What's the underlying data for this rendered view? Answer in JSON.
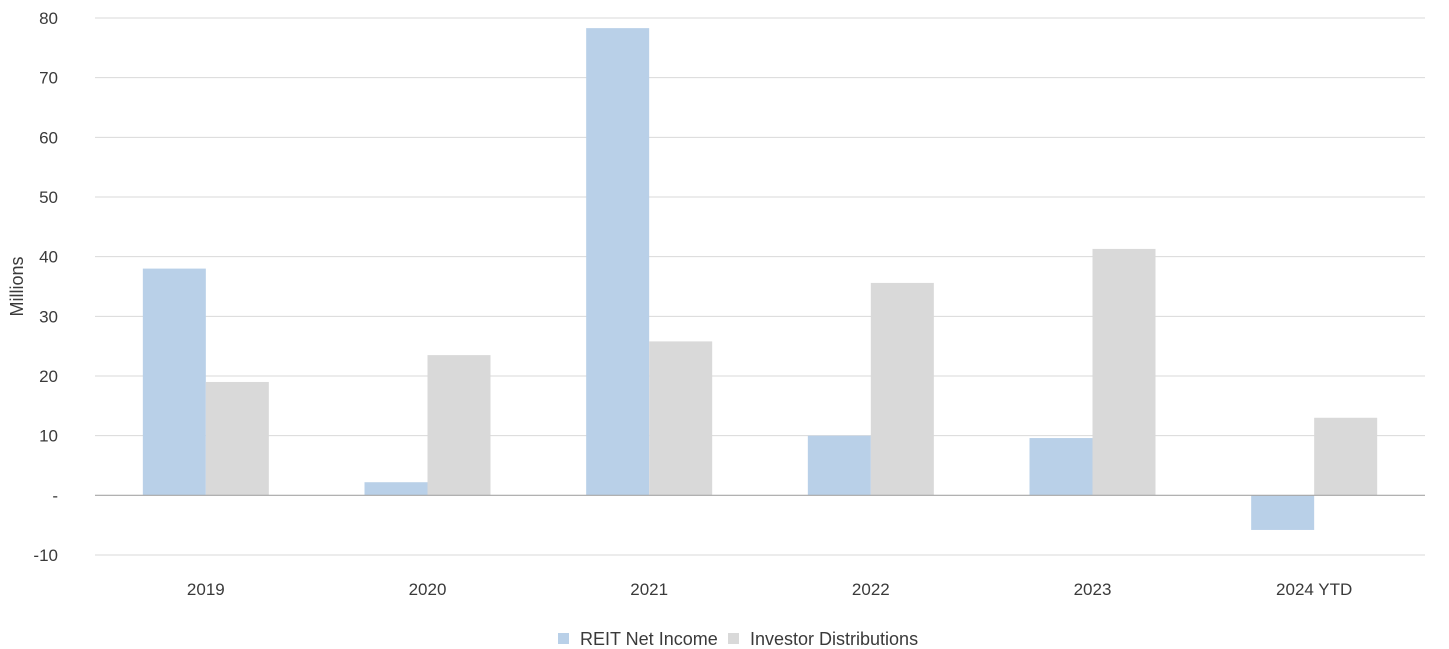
{
  "chart_data": {
    "type": "bar",
    "title": "",
    "xlabel": "",
    "ylabel": "Millions",
    "ylim": [
      -10,
      80
    ],
    "y_ticks": [
      -10,
      0,
      10,
      20,
      30,
      40,
      50,
      60,
      70,
      80
    ],
    "y_tick_labels": [
      "-10",
      "-",
      "10",
      "20",
      "30",
      "40",
      "50",
      "60",
      "70",
      "80"
    ],
    "grid": true,
    "legend_position": "bottom-center",
    "categories": [
      "2019",
      "2020",
      "2021",
      "2022",
      "2023",
      "2024 YTD"
    ],
    "series": [
      {
        "name": "REIT Net Income",
        "color": "#b9d0e8",
        "values": [
          38.0,
          2.2,
          78.3,
          10.0,
          9.6,
          -5.8
        ]
      },
      {
        "name": "Investor Distributions",
        "color": "#d9d9d9",
        "values": [
          19.0,
          23.5,
          25.8,
          35.6,
          41.3,
          13.0
        ]
      }
    ]
  }
}
